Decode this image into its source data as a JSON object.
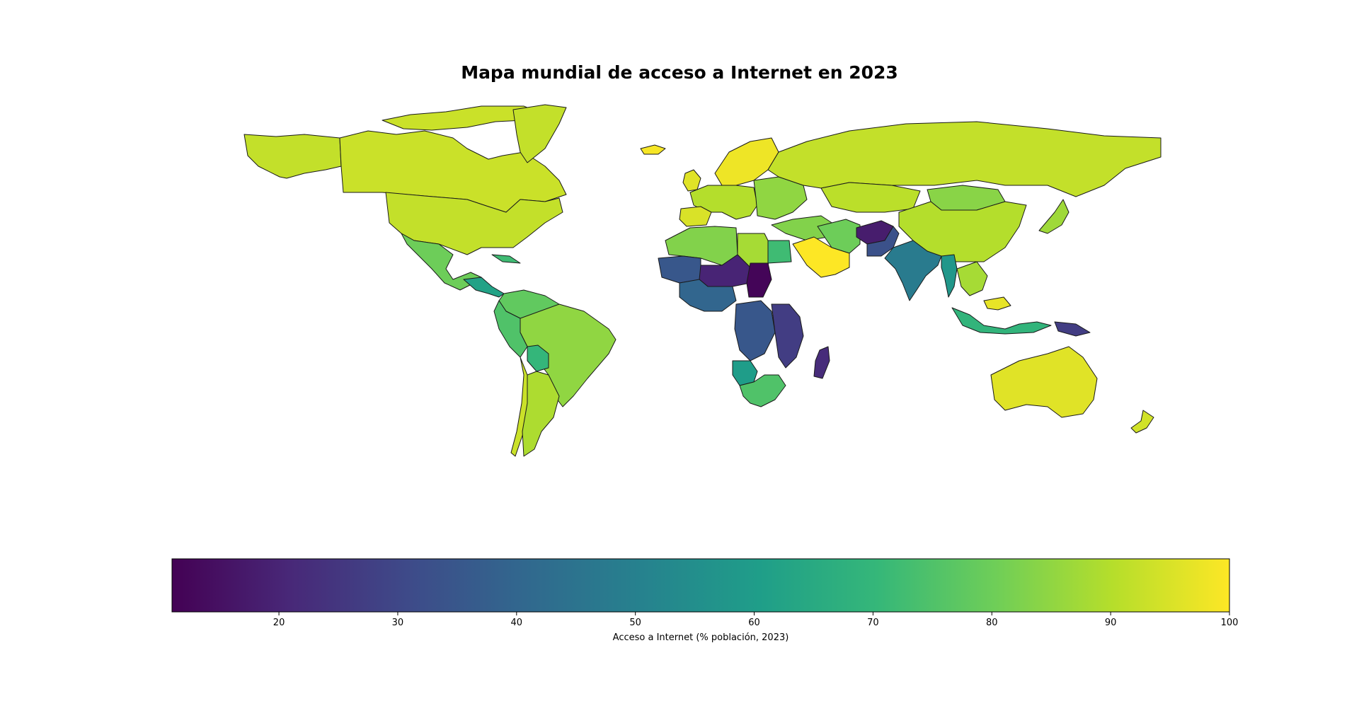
{
  "title": "Mapa mundial de acceso a Internet en 2023",
  "colorbar": {
    "label": "Acceso a Internet (% población, 2023)",
    "ticks": [
      20,
      30,
      40,
      50,
      60,
      70,
      80,
      90,
      100
    ],
    "range": [
      11,
      100
    ],
    "colormap": "viridis"
  },
  "colors": {
    "border": "#1a1a1a",
    "viridis_stops": [
      "#440154",
      "#482878",
      "#3e4a89",
      "#31688e",
      "#26828e",
      "#1f9e89",
      "#35b779",
      "#6ece58",
      "#b5de2b",
      "#fde725"
    ]
  },
  "regions": [
    {
      "id": "canada",
      "value": 93
    },
    {
      "id": "alaska",
      "value": 92
    },
    {
      "id": "usa",
      "value": 92
    },
    {
      "id": "greenland",
      "value": 92
    },
    {
      "id": "arctic-islands",
      "value": 93
    },
    {
      "id": "mexico",
      "value": 80
    },
    {
      "id": "central-america",
      "value": 62
    },
    {
      "id": "cuba",
      "value": 72
    },
    {
      "id": "colombia-venezuela",
      "value": 78
    },
    {
      "id": "brazil",
      "value": 85
    },
    {
      "id": "peru",
      "value": 75
    },
    {
      "id": "bolivia",
      "value": 70
    },
    {
      "id": "chile",
      "value": 93
    },
    {
      "id": "argentina",
      "value": 89
    },
    {
      "id": "iceland",
      "value": 99
    },
    {
      "id": "uk",
      "value": 96
    },
    {
      "id": "scandinavia",
      "value": 98
    },
    {
      "id": "western-europe",
      "value": 90
    },
    {
      "id": "iberia",
      "value": 95
    },
    {
      "id": "eastern-europe",
      "value": 85
    },
    {
      "id": "russia",
      "value": 92
    },
    {
      "id": "kazakhstan",
      "value": 91
    },
    {
      "id": "mongolia",
      "value": 84
    },
    {
      "id": "china",
      "value": 90
    },
    {
      "id": "japan",
      "value": 87
    },
    {
      "id": "middle-east",
      "value": 83
    },
    {
      "id": "saudi-arabia",
      "value": 100
    },
    {
      "id": "iran",
      "value": 80
    },
    {
      "id": "afghanistan",
      "value": 18
    },
    {
      "id": "pakistan",
      "value": 33
    },
    {
      "id": "india",
      "value": 48
    },
    {
      "id": "myanmar",
      "value": 58
    },
    {
      "id": "southeast-asia",
      "value": 88
    },
    {
      "id": "malaysia",
      "value": 97
    },
    {
      "id": "indonesia",
      "value": 69
    },
    {
      "id": "papua",
      "value": 27
    },
    {
      "id": "australia",
      "value": 96
    },
    {
      "id": "new-zealand",
      "value": 94
    },
    {
      "id": "maghreb",
      "value": 83
    },
    {
      "id": "libya",
      "value": 88
    },
    {
      "id": "egypt",
      "value": 72
    },
    {
      "id": "west-sahel",
      "value": 35
    },
    {
      "id": "niger-chad",
      "value": 20
    },
    {
      "id": "sudan",
      "value": 12
    },
    {
      "id": "nigeria",
      "value": 40
    },
    {
      "id": "drc",
      "value": 35
    },
    {
      "id": "east-africa",
      "value": 27
    },
    {
      "id": "angola",
      "value": 60
    },
    {
      "id": "southern-africa",
      "value": 75
    },
    {
      "id": "madagascar",
      "value": 22
    }
  ]
}
